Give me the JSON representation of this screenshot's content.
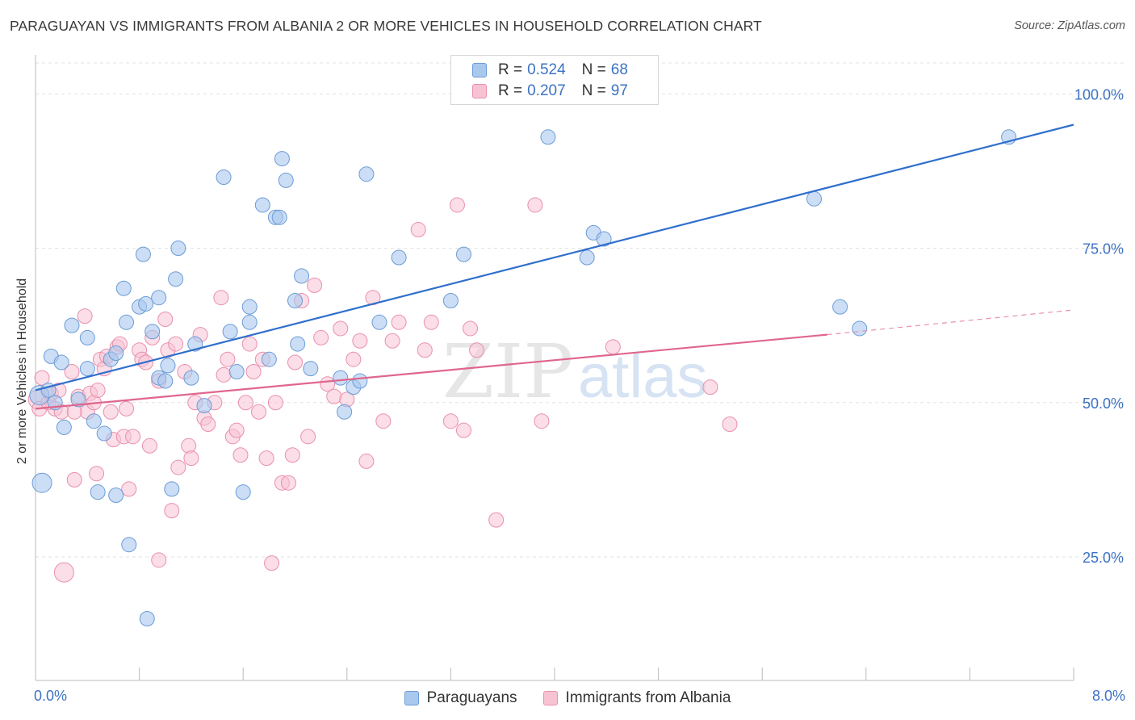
{
  "title": "PARAGUAYAN VS IMMIGRANTS FROM ALBANIA 2 OR MORE VEHICLES IN HOUSEHOLD CORRELATION CHART",
  "source": "Source: ZipAtlas.com",
  "colors": {
    "blue_fill": "#a9c8ee",
    "blue_stroke": "#6d9bd6",
    "blue_line": "#2f6fcc",
    "pink_fill": "#f7c3d3",
    "pink_stroke": "#e990ad",
    "pink_line": "#e0668d",
    "tick_text": "#3c72c4",
    "grid": "#e2e2e2"
  },
  "legend": {
    "r_label": "R =",
    "n_label": "N =",
    "blue": {
      "r": "0.524",
      "n": "68"
    },
    "pink": {
      "r": "0.207",
      "n": "97"
    }
  },
  "watermark": {
    "zip": "ZIP",
    "atlas": "atlas"
  },
  "chart_data": {
    "type": "scatter",
    "title": "PARAGUAYAN VS IMMIGRANTS FROM ALBANIA 2 OR MORE VEHICLES IN HOUSEHOLD CORRELATION CHART",
    "xlabel": "",
    "ylabel": "2 or more Vehicles in Household",
    "xlim": [
      0,
      8
    ],
    "ylim": [
      5,
      105
    ],
    "x_ticks": [
      "0.0%",
      "8.0%"
    ],
    "y_ticks": [
      {
        "value": 25,
        "label": "25.0%"
      },
      {
        "value": 50,
        "label": "50.0%"
      },
      {
        "value": 75,
        "label": "75.0%"
      },
      {
        "value": 100,
        "label": "100.0%"
      }
    ],
    "grid": "horizontal dashed",
    "legend_placement": "top-center and bottom",
    "series": [
      {
        "name": "Paraguayans",
        "color": "#a9c8ee",
        "trend": {
          "x": [
            0,
            8
          ],
          "y": [
            52.0,
            95.0
          ],
          "style": "solid"
        },
        "points": [
          [
            0.03,
            51.2
          ],
          [
            0.05,
            37.0
          ],
          [
            0.1,
            52.0
          ],
          [
            0.12,
            57.5
          ],
          [
            0.15,
            50.0
          ],
          [
            0.2,
            56.5
          ],
          [
            0.22,
            46.0
          ],
          [
            0.28,
            62.5
          ],
          [
            0.33,
            50.5
          ],
          [
            0.4,
            60.5
          ],
          [
            0.45,
            47.0
          ],
          [
            0.48,
            35.5
          ],
          [
            0.53,
            45.0
          ],
          [
            0.58,
            57.0
          ],
          [
            0.62,
            58.0
          ],
          [
            0.62,
            35.0
          ],
          [
            0.68,
            68.5
          ],
          [
            0.7,
            63.0
          ],
          [
            0.72,
            27.0
          ],
          [
            0.8,
            65.5
          ],
          [
            0.83,
            74.0
          ],
          [
            0.85,
            66.0
          ],
          [
            0.86,
            15.0
          ],
          [
            0.9,
            61.5
          ],
          [
            0.95,
            54.0
          ],
          [
            0.95,
            67.0
          ],
          [
            1.0,
            53.5
          ],
          [
            1.02,
            56.0
          ],
          [
            1.05,
            36.0
          ],
          [
            1.08,
            70.0
          ],
          [
            1.1,
            75.0
          ],
          [
            1.2,
            54.0
          ],
          [
            1.23,
            59.5
          ],
          [
            1.3,
            49.5
          ],
          [
            1.45,
            86.5
          ],
          [
            1.5,
            61.5
          ],
          [
            1.55,
            55.0
          ],
          [
            1.6,
            35.5
          ],
          [
            1.65,
            63.0
          ],
          [
            1.65,
            65.5
          ],
          [
            1.75,
            82.0
          ],
          [
            1.85,
            80.0
          ],
          [
            1.88,
            80.0
          ],
          [
            1.9,
            89.5
          ],
          [
            1.93,
            86.0
          ],
          [
            2.0,
            66.5
          ],
          [
            2.02,
            59.5
          ],
          [
            2.05,
            70.5
          ],
          [
            2.12,
            55.5
          ],
          [
            2.35,
            54.0
          ],
          [
            2.38,
            48.5
          ],
          [
            2.45,
            52.5
          ],
          [
            2.5,
            53.5
          ],
          [
            2.55,
            87.0
          ],
          [
            2.65,
            63.0
          ],
          [
            2.8,
            73.5
          ],
          [
            3.2,
            66.5
          ],
          [
            3.3,
            74.0
          ],
          [
            3.95,
            93.0
          ],
          [
            4.25,
            73.5
          ],
          [
            4.3,
            77.5
          ],
          [
            4.38,
            76.5
          ],
          [
            6.0,
            83.0
          ],
          [
            6.2,
            65.5
          ],
          [
            6.35,
            62.0
          ],
          [
            7.5,
            93.0
          ],
          [
            0.4,
            55.5
          ],
          [
            1.8,
            57.0
          ]
        ]
      },
      {
        "name": "Immigrants from Albania",
        "color": "#f7c3d3",
        "trend": {
          "x": [
            0,
            6.1
          ],
          "y": [
            49.0,
            61.0
          ],
          "style": "solid",
          "dash_x": [
            6.1,
            8
          ],
          "dash_y": [
            61.0,
            65.0
          ]
        },
        "points": [
          [
            0.02,
            50.5
          ],
          [
            0.03,
            49.0
          ],
          [
            0.05,
            54.0
          ],
          [
            0.1,
            50.0
          ],
          [
            0.12,
            51.5
          ],
          [
            0.15,
            49.0
          ],
          [
            0.18,
            52.0
          ],
          [
            0.2,
            48.5
          ],
          [
            0.22,
            22.5
          ],
          [
            0.28,
            55.0
          ],
          [
            0.3,
            37.5
          ],
          [
            0.33,
            51.0
          ],
          [
            0.38,
            64.0
          ],
          [
            0.4,
            48.5
          ],
          [
            0.42,
            51.5
          ],
          [
            0.45,
            50.0
          ],
          [
            0.47,
            38.5
          ],
          [
            0.48,
            52.0
          ],
          [
            0.5,
            57.0
          ],
          [
            0.53,
            55.5
          ],
          [
            0.55,
            57.5
          ],
          [
            0.58,
            48.5
          ],
          [
            0.6,
            44.0
          ],
          [
            0.63,
            59.0
          ],
          [
            0.65,
            59.5
          ],
          [
            0.68,
            44.5
          ],
          [
            0.7,
            49.0
          ],
          [
            0.72,
            36.0
          ],
          [
            0.75,
            44.5
          ],
          [
            0.8,
            58.5
          ],
          [
            0.82,
            57.0
          ],
          [
            0.85,
            56.5
          ],
          [
            0.88,
            43.0
          ],
          [
            0.9,
            60.5
          ],
          [
            0.95,
            53.5
          ],
          [
            0.95,
            24.5
          ],
          [
            1.0,
            63.5
          ],
          [
            1.02,
            58.5
          ],
          [
            1.05,
            32.5
          ],
          [
            1.08,
            59.5
          ],
          [
            1.1,
            39.5
          ],
          [
            1.15,
            55.0
          ],
          [
            1.18,
            43.0
          ],
          [
            1.2,
            41.0
          ],
          [
            1.23,
            50.0
          ],
          [
            1.27,
            61.0
          ],
          [
            1.3,
            47.5
          ],
          [
            1.33,
            46.5
          ],
          [
            1.38,
            50.0
          ],
          [
            1.43,
            67.0
          ],
          [
            1.45,
            54.5
          ],
          [
            1.48,
            57.0
          ],
          [
            1.52,
            44.5
          ],
          [
            1.55,
            45.5
          ],
          [
            1.58,
            41.5
          ],
          [
            1.62,
            50.0
          ],
          [
            1.65,
            59.5
          ],
          [
            1.68,
            55.0
          ],
          [
            1.72,
            48.5
          ],
          [
            1.75,
            57.0
          ],
          [
            1.78,
            41.0
          ],
          [
            1.82,
            24.0
          ],
          [
            1.85,
            50.0
          ],
          [
            1.9,
            37.0
          ],
          [
            1.95,
            37.0
          ],
          [
            1.98,
            41.5
          ],
          [
            2.0,
            56.5
          ],
          [
            2.05,
            66.5
          ],
          [
            2.1,
            44.5
          ],
          [
            2.15,
            69.0
          ],
          [
            2.2,
            60.5
          ],
          [
            2.25,
            53.0
          ],
          [
            2.3,
            51.0
          ],
          [
            2.35,
            62.0
          ],
          [
            2.4,
            50.5
          ],
          [
            2.45,
            57.0
          ],
          [
            2.5,
            60.0
          ],
          [
            2.55,
            40.5
          ],
          [
            2.6,
            67.0
          ],
          [
            2.68,
            47.0
          ],
          [
            2.75,
            60.0
          ],
          [
            2.8,
            63.0
          ],
          [
            2.95,
            78.0
          ],
          [
            3.0,
            58.5
          ],
          [
            3.05,
            63.0
          ],
          [
            3.2,
            47.0
          ],
          [
            3.25,
            82.0
          ],
          [
            3.3,
            45.5
          ],
          [
            3.35,
            62.0
          ],
          [
            3.4,
            58.5
          ],
          [
            3.55,
            31.0
          ],
          [
            3.85,
            82.0
          ],
          [
            3.9,
            47.0
          ],
          [
            4.45,
            59.0
          ],
          [
            5.2,
            52.5
          ],
          [
            5.35,
            46.5
          ],
          [
            0.3,
            48.5
          ]
        ]
      }
    ]
  },
  "bottom_legend": {
    "blue_label": "Paraguayans",
    "pink_label": "Immigrants from Albania"
  }
}
